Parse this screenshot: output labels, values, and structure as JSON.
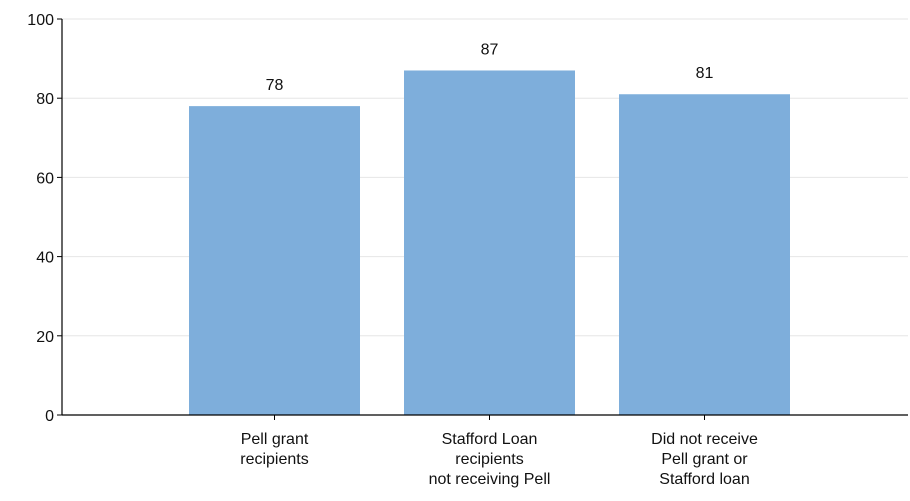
{
  "chart_data": {
    "type": "bar",
    "title": "",
    "xlabel": "",
    "ylabel": "",
    "ylim": [
      0,
      100
    ],
    "yticks": [
      0,
      20,
      40,
      60,
      80,
      100
    ],
    "grid": true,
    "categories": [
      "Pell grant recipients",
      "Stafford Loan recipients not receiving Pell",
      "Did not receive Pell grant or Stafford loan"
    ],
    "category_lines": [
      [
        "Pell grant",
        "recipients"
      ],
      [
        "Stafford Loan",
        "recipients",
        "not receiving Pell"
      ],
      [
        "Did not receive",
        "Pell grant or",
        "Stafford loan"
      ]
    ],
    "values": [
      78,
      87,
      81
    ],
    "colors": {
      "bar": "#7eaedb",
      "axis": "#000000",
      "grid": "#e6e6e6"
    }
  }
}
